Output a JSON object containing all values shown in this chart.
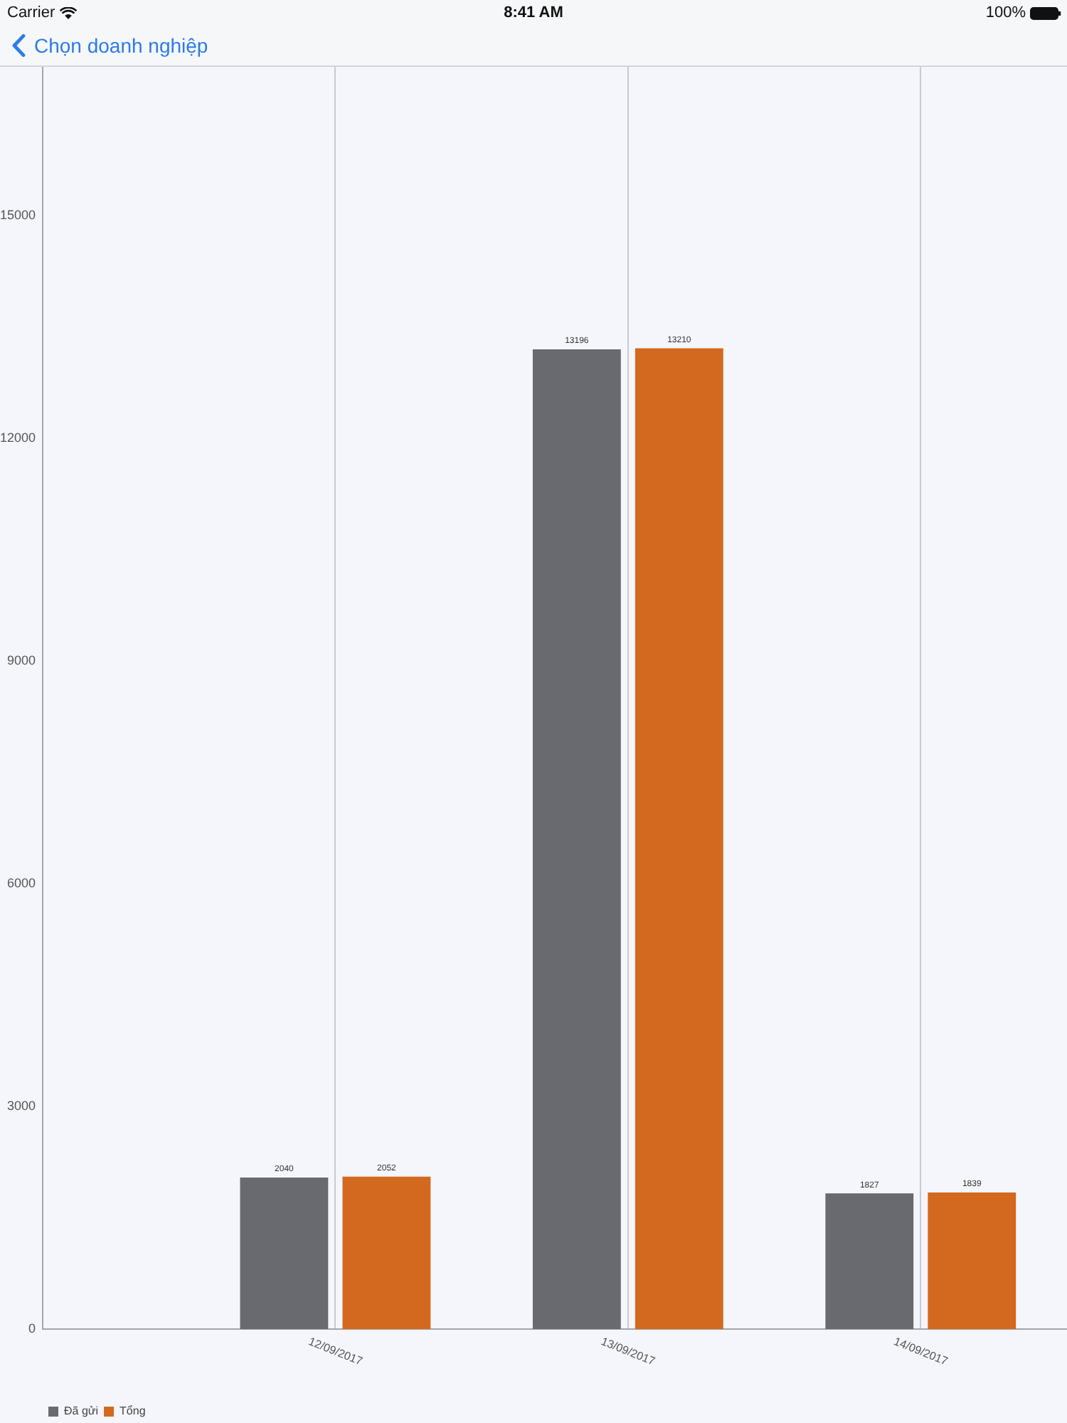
{
  "chart_data": {
    "type": "bar",
    "categories": [
      "12/09/2017",
      "13/09/2017",
      "14/09/2017"
    ],
    "series": [
      {
        "name": "Đã gửi",
        "color": "#686a70",
        "values": [
          2040,
          13196,
          1827
        ]
      },
      {
        "name": "Tổng",
        "color": "#d2691f",
        "values": [
          2052,
          13210,
          1839
        ]
      }
    ],
    "ylim": [
      0,
      17000
    ],
    "yticks": [
      0,
      3000,
      6000,
      9000,
      12000,
      15000
    ],
    "grid": "x",
    "legend": "bottom left",
    "data_labels": true,
    "annotations": [
      "Carrier",
      "8:41 AM",
      "100%",
      "Chọn doanh nghiệp"
    ]
  }
}
